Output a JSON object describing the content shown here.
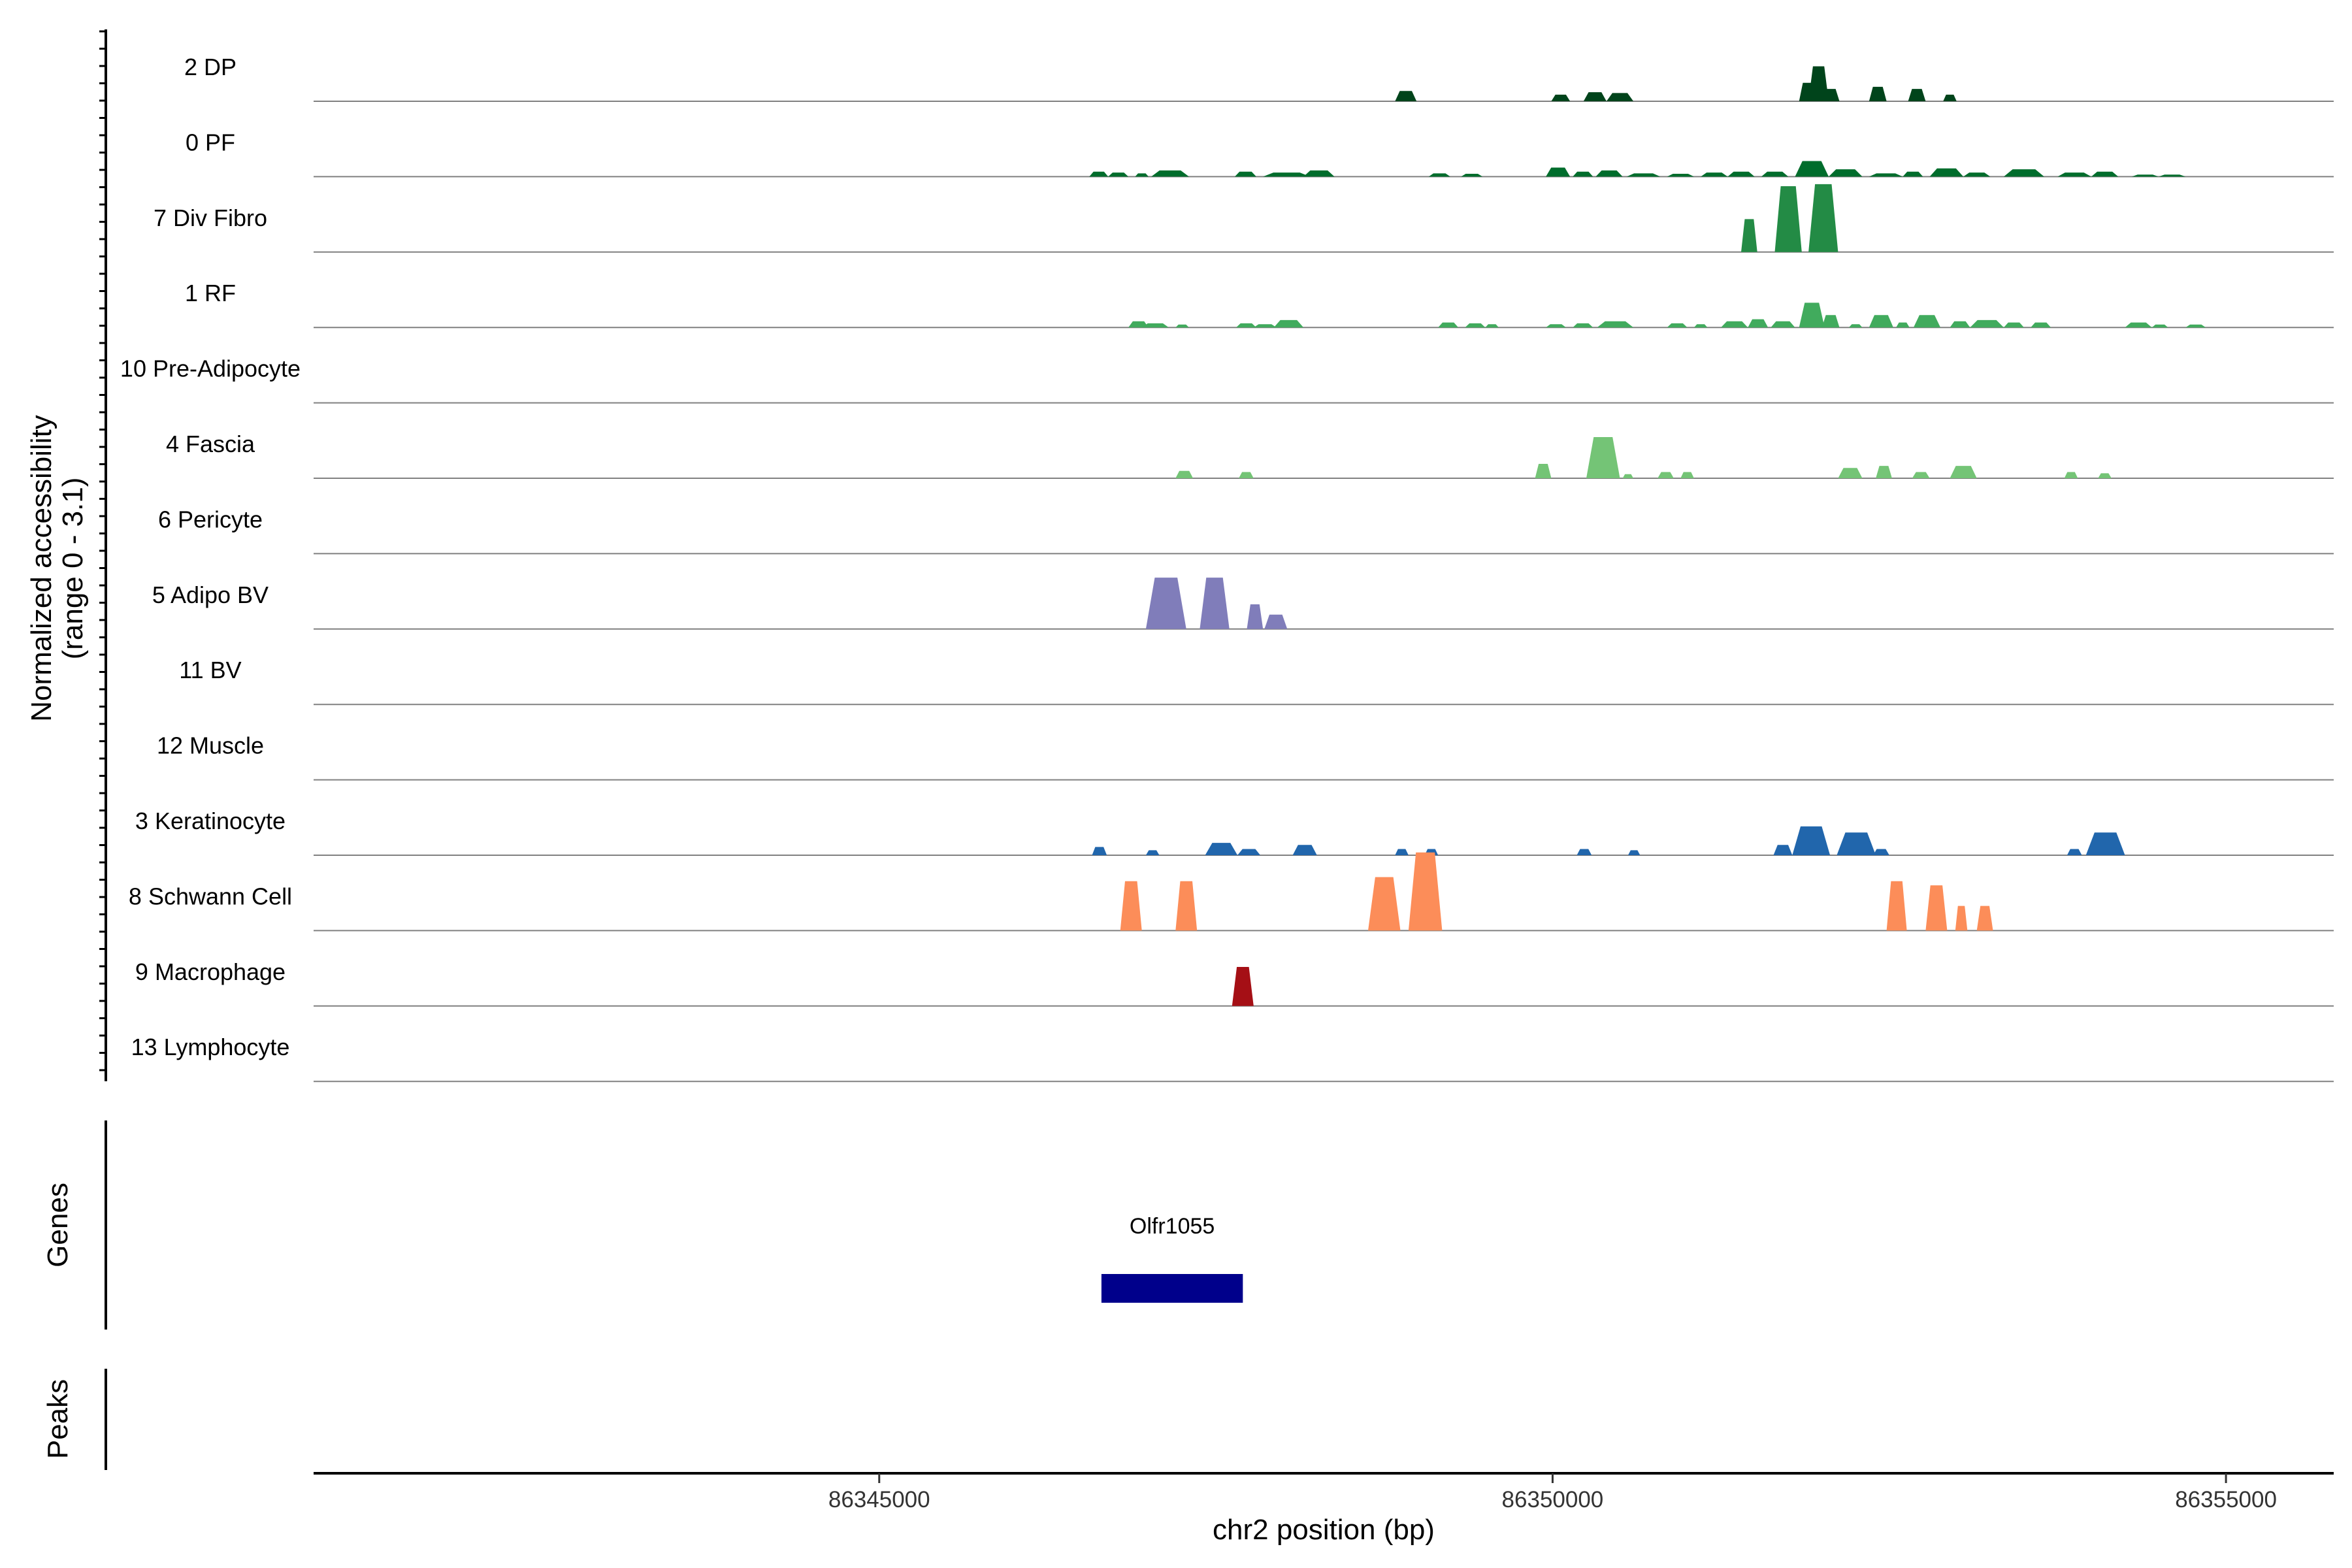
{
  "chart_data": {
    "type": "area",
    "ylabel_lines": [
      "Normalized accessibility",
      "(range 0 - 3.1)"
    ],
    "ylim": [
      0,
      3.1
    ],
    "xlabel": "chr2 position (bp)",
    "xlim": [
      86340800,
      86355800
    ],
    "x_ticks": [
      86345000,
      86350000,
      86355000
    ],
    "x_tick_labels": [
      "86345000",
      "86350000",
      "86355000"
    ],
    "genes_track_label": "Genes",
    "peaks_track_label": "Peaks",
    "genes": [
      {
        "name": "Olfr1055",
        "start": 86346650,
        "end": 86347700,
        "color": "#00008b"
      }
    ],
    "tracks": [
      {
        "name": "2 DP",
        "color": "#00441b",
        "peaks": [
          [
            86348830,
            86348990,
            0.25
          ],
          [
            86349990,
            86350130,
            0.16
          ],
          [
            86350230,
            86350400,
            0.22
          ],
          [
            86350400,
            86350600,
            0.2
          ],
          [
            86351830,
            86351960,
            0.45
          ],
          [
            86351900,
            86352050,
            0.85
          ],
          [
            86352000,
            86352130,
            0.3
          ],
          [
            86352350,
            86352480,
            0.35
          ],
          [
            86352640,
            86352770,
            0.3
          ],
          [
            86352900,
            86353000,
            0.16
          ]
        ]
      },
      {
        "name": "0 PF",
        "color": "#006d2c",
        "peaks": [
          [
            86346560,
            86346700,
            0.12
          ],
          [
            86346700,
            86346850,
            0.1
          ],
          [
            86346900,
            86347000,
            0.08
          ],
          [
            86347020,
            86347300,
            0.15
          ],
          [
            86347640,
            86347800,
            0.12
          ],
          [
            86347850,
            86348200,
            0.1
          ],
          [
            86348150,
            86348380,
            0.15
          ],
          [
            86349080,
            86349240,
            0.08
          ],
          [
            86349320,
            86349480,
            0.07
          ],
          [
            86349950,
            86350130,
            0.22
          ],
          [
            86350150,
            86350300,
            0.12
          ],
          [
            86350320,
            86350520,
            0.15
          ],
          [
            86350550,
            86350800,
            0.08
          ],
          [
            86350850,
            86351050,
            0.07
          ],
          [
            86351100,
            86351300,
            0.1
          ],
          [
            86351300,
            86351500,
            0.12
          ],
          [
            86351550,
            86351750,
            0.12
          ],
          [
            86351800,
            86352050,
            0.38
          ],
          [
            86352050,
            86352300,
            0.18
          ],
          [
            86352350,
            86352600,
            0.08
          ],
          [
            86352600,
            86352750,
            0.12
          ],
          [
            86352800,
            86353050,
            0.2
          ],
          [
            86353050,
            86353250,
            0.1
          ],
          [
            86353350,
            86353650,
            0.18
          ],
          [
            86353750,
            86354000,
            0.1
          ],
          [
            86354000,
            86354200,
            0.12
          ],
          [
            86354300,
            86354500,
            0.05
          ],
          [
            86354500,
            86354700,
            0.05
          ]
        ]
      },
      {
        "name": "7 Div Fibro",
        "color": "#238b45",
        "peaks": [
          [
            86351400,
            86351520,
            0.8
          ],
          [
            86351650,
            86351850,
            1.6
          ],
          [
            86351900,
            86352120,
            1.65
          ]
        ]
      },
      {
        "name": "1 RF",
        "color": "#41ab5d",
        "peaks": [
          [
            86346850,
            86347000,
            0.15
          ],
          [
            86346950,
            86347150,
            0.1
          ],
          [
            86347200,
            86347300,
            0.07
          ],
          [
            86347650,
            86347800,
            0.1
          ],
          [
            86347780,
            86347950,
            0.08
          ],
          [
            86347930,
            86348150,
            0.18
          ],
          [
            86349150,
            86349300,
            0.12
          ],
          [
            86349350,
            86349500,
            0.1
          ],
          [
            86349500,
            86349600,
            0.08
          ],
          [
            86349950,
            86350100,
            0.08
          ],
          [
            86350150,
            86350300,
            0.1
          ],
          [
            86350330,
            86350600,
            0.15
          ],
          [
            86350850,
            86351000,
            0.1
          ],
          [
            86351050,
            86351150,
            0.08
          ],
          [
            86351250,
            86351450,
            0.15
          ],
          [
            86351450,
            86351600,
            0.2
          ],
          [
            86351620,
            86351800,
            0.15
          ],
          [
            86351830,
            86352020,
            0.6
          ],
          [
            86352000,
            86352130,
            0.3
          ],
          [
            86352200,
            86352300,
            0.08
          ],
          [
            86352350,
            86352530,
            0.3
          ],
          [
            86352550,
            86352650,
            0.12
          ],
          [
            86352680,
            86352880,
            0.3
          ],
          [
            86352950,
            86353100,
            0.15
          ],
          [
            86353100,
            86353350,
            0.18
          ],
          [
            86353350,
            86353500,
            0.12
          ],
          [
            86353550,
            86353700,
            0.12
          ],
          [
            86354250,
            86354450,
            0.12
          ],
          [
            86354450,
            86354570,
            0.07
          ],
          [
            86354700,
            86354850,
            0.07
          ]
        ]
      },
      {
        "name": "10 Pre-Adipocyte",
        "color": "#74c476",
        "peaks": []
      },
      {
        "name": "4 Fascia",
        "color": "#74c476",
        "peaks": [
          [
            86347200,
            86347330,
            0.18
          ],
          [
            86347670,
            86347780,
            0.15
          ],
          [
            86349870,
            86349990,
            0.35
          ],
          [
            86350250,
            86350500,
            1.0
          ],
          [
            86350520,
            86350600,
            0.1
          ],
          [
            86350780,
            86350900,
            0.15
          ],
          [
            86350950,
            86351050,
            0.15
          ],
          [
            86352120,
            86352300,
            0.25
          ],
          [
            86352400,
            86352520,
            0.3
          ],
          [
            86352670,
            86352800,
            0.15
          ],
          [
            86352950,
            86353150,
            0.3
          ],
          [
            86353800,
            86353900,
            0.15
          ],
          [
            86354050,
            86354150,
            0.12
          ]
        ]
      },
      {
        "name": "6 Pericyte",
        "color": "#9e9ac8",
        "peaks": []
      },
      {
        "name": "5 Adipo BV",
        "color": "#807dba",
        "peaks": [
          [
            86346980,
            86347280,
            1.25
          ],
          [
            86347380,
            86347600,
            1.25
          ],
          [
            86347730,
            86347850,
            0.6
          ],
          [
            86347860,
            86348030,
            0.35
          ]
        ]
      },
      {
        "name": "11 BV",
        "color": "#6a51a3",
        "peaks": []
      },
      {
        "name": "12 Muscle",
        "color": "#4292c6",
        "peaks": []
      },
      {
        "name": "3 Keratinocyte",
        "color": "#2166ac",
        "peaks": [
          [
            86346580,
            86346690,
            0.2
          ],
          [
            86346980,
            86347080,
            0.12
          ],
          [
            86347420,
            86347660,
            0.3
          ],
          [
            86347660,
            86347830,
            0.15
          ],
          [
            86348070,
            86348250,
            0.25
          ],
          [
            86348830,
            86348930,
            0.15
          ],
          [
            86349050,
            86349150,
            0.15
          ],
          [
            86350180,
            86350290,
            0.15
          ],
          [
            86350560,
            86350650,
            0.12
          ],
          [
            86351640,
            86351780,
            0.25
          ],
          [
            86351780,
            86352060,
            0.7
          ],
          [
            86352110,
            86352400,
            0.55
          ],
          [
            86352380,
            86352500,
            0.15
          ],
          [
            86353820,
            86353930,
            0.15
          ],
          [
            86353960,
            86354250,
            0.55
          ]
        ]
      },
      {
        "name": "8 Schwann Cell",
        "color": "#fc8d59",
        "peaks": [
          [
            86346790,
            86346950,
            1.2
          ],
          [
            86347200,
            86347360,
            1.2
          ],
          [
            86348630,
            86348870,
            1.3
          ],
          [
            86348930,
            86349180,
            1.9
          ],
          [
            86352480,
            86352630,
            1.2
          ],
          [
            86352770,
            86352930,
            1.1
          ],
          [
            86352990,
            86353080,
            0.6
          ],
          [
            86353150,
            86353270,
            0.6
          ]
        ]
      },
      {
        "name": "9 Macrophage",
        "color": "#a50f15",
        "peaks": [
          [
            86347620,
            86347780,
            0.95
          ]
        ]
      },
      {
        "name": "13 Lymphocyte",
        "color": "#cb181d",
        "peaks": []
      }
    ]
  }
}
